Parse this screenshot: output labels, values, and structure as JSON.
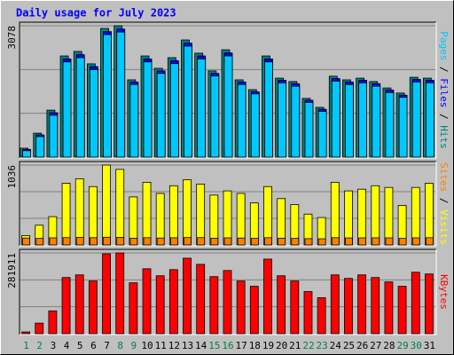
{
  "chart_data": {
    "type": "bar",
    "title": "Daily usage for July 2023",
    "categories": [
      "1",
      "2",
      "3",
      "4",
      "5",
      "6",
      "7",
      "8",
      "9",
      "10",
      "11",
      "12",
      "13",
      "14",
      "15",
      "16",
      "17",
      "18",
      "19",
      "20",
      "21",
      "22",
      "23",
      "24",
      "25",
      "26",
      "27",
      "28",
      "29",
      "30",
      "31"
    ],
    "category_colors": [
      "#008040",
      "#008040",
      "#000000",
      "#000000",
      "#000000",
      "#000000",
      "#000000",
      "#008040",
      "#008040",
      "#000000",
      "#000000",
      "#000000",
      "#000000",
      "#000000",
      "#008040",
      "#008040",
      "#000000",
      "#000000",
      "#000000",
      "#000000",
      "#000000",
      "#008040",
      "#008040",
      "#000000",
      "#000000",
      "#000000",
      "#000000",
      "#000000",
      "#008040",
      "#008040",
      "#000000"
    ],
    "panels": [
      {
        "ylim": [
          0,
          3078
        ],
        "yticks": [
          3078
        ],
        "grid_divisions": 3,
        "series": [
          {
            "name": "Hits",
            "color": "#008080",
            "values": [
              208,
              560,
              1100,
              2370,
              2475,
              2185,
              3015,
              3078,
              1810,
              2370,
              2080,
              2330,
              2745,
              2435,
              2020,
              2515,
              1810,
              1580,
              2370,
              1850,
              1770,
              1375,
              1165,
              1895,
              1810,
              1850,
              1770,
              1620,
              1500,
              1870,
              1850
            ]
          },
          {
            "name": "Files",
            "color": "#0000ff",
            "values": [
              180,
              520,
              1040,
              2300,
              2400,
              2120,
              2940,
              3000,
              1760,
              2300,
              2020,
              2260,
              2670,
              2370,
              1960,
              2440,
              1760,
              1530,
              2300,
              1800,
              1720,
              1330,
              1120,
              1840,
              1760,
              1800,
              1720,
              1570,
              1450,
              1820,
              1800
            ]
          },
          {
            "name": "Pages",
            "color": "#00c8ff",
            "values": [
              150,
              480,
              980,
              2230,
              2330,
              2050,
              2870,
              2930,
              1700,
              2230,
              1960,
              2190,
              2600,
              2300,
              1900,
              2370,
              1700,
              1480,
              2230,
              1740,
              1660,
              1280,
              1070,
              1780,
              1700,
              1740,
              1660,
              1510,
              1400,
              1760,
              1740
            ]
          }
        ]
      },
      {
        "ylim": [
          0,
          1036
        ],
        "yticks": [
          1036
        ],
        "grid_divisions": 3,
        "series": [
          {
            "name": "Visits",
            "color": "#ffff00",
            "values": [
              122,
              256,
              367,
              800,
              858,
              757,
              1036,
              980,
              623,
              813,
              668,
              768,
              846,
              790,
              646,
              701,
              668,
              545,
              757,
              601,
              523,
              400,
              356,
              813,
              701,
              723,
              768,
              746,
              512,
              746,
              800
            ]
          },
          {
            "name": "Sites",
            "color": "#ff8000",
            "values": [
              90,
              85,
              92,
              95,
              98,
              94,
              100,
              99,
              88,
              94,
              90,
              93,
              96,
              95,
              88,
              92,
              90,
              86,
              94,
              88,
              86,
              82,
              80,
              94,
              91,
              92,
              93,
              92,
              85,
              92,
              94
            ]
          }
        ]
      },
      {
        "ylim": [
          0,
          281911
        ],
        "yticks": [
          281911
        ],
        "grid_divisions": 3,
        "series": [
          {
            "name": "KBytes",
            "color": "#ff0000",
            "values": [
              6100,
              36800,
              79700,
              196100,
              205300,
              183900,
              278800,
              281911,
              177700,
              226700,
              202200,
              223700,
              263500,
              242100,
              199200,
              220600,
              183900,
              165500,
              260400,
              202200,
              183900,
              147100,
              125600,
              205300,
              193000,
              205300,
              196100,
              180800,
              165500,
              214500,
              208400
            ]
          }
        ]
      }
    ]
  }
}
